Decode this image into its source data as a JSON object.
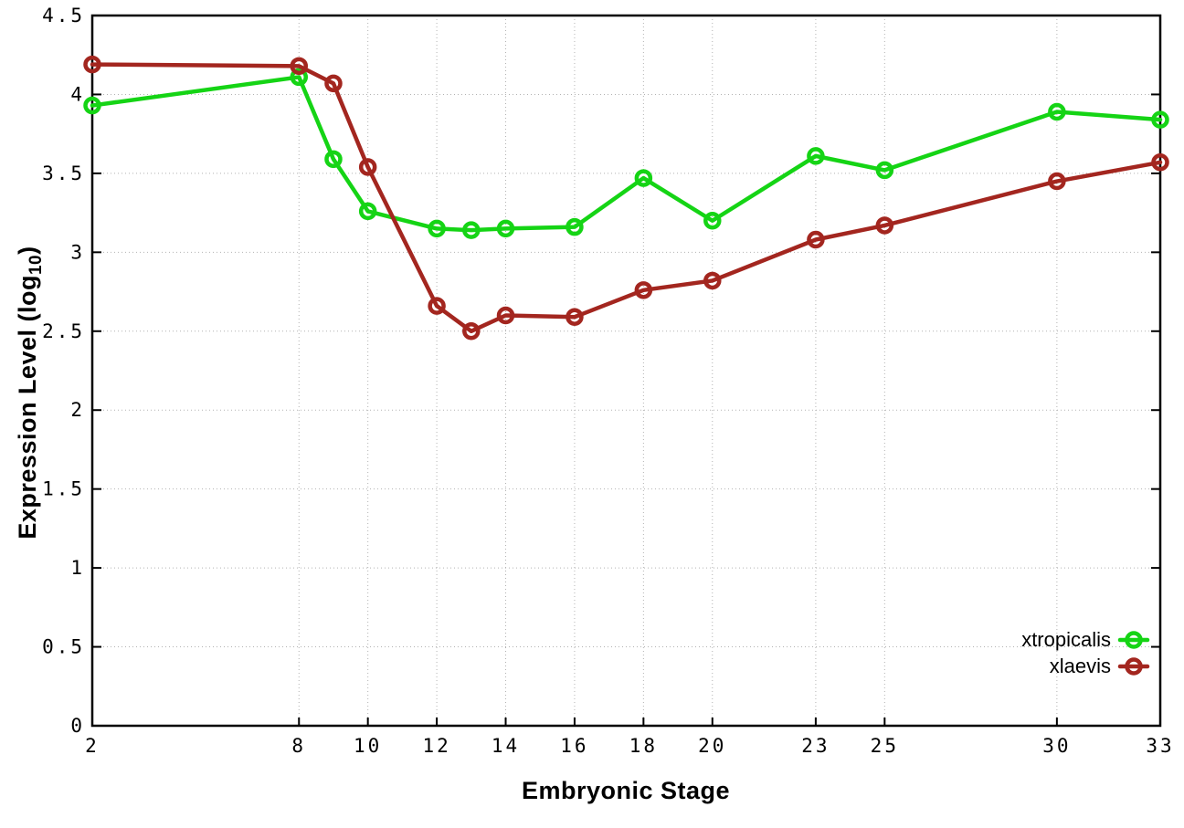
{
  "chart_data": {
    "type": "line",
    "title": "",
    "xlabel": "Embryonic Stage",
    "ylabel": "Expression Level (log10)",
    "ylabel_parts": {
      "base": "Expression Level (log",
      "sub": "10",
      "close": ")"
    },
    "marker": "open-circle",
    "x": [
      2,
      8,
      9,
      10,
      12,
      13,
      14,
      16,
      18,
      20,
      23,
      25,
      30,
      33
    ],
    "series": [
      {
        "name": "xtropicalis",
        "color": "#15d415",
        "values": [
          3.93,
          4.11,
          3.59,
          3.26,
          3.15,
          3.14,
          3.15,
          3.16,
          3.47,
          3.2,
          3.61,
          3.52,
          3.89,
          3.84
        ]
      },
      {
        "name": "xlaevis",
        "color": "#a3261f",
        "values": [
          4.19,
          4.18,
          4.07,
          3.54,
          2.66,
          2.5,
          2.6,
          2.59,
          2.76,
          2.82,
          3.08,
          3.17,
          3.45,
          3.57
        ]
      }
    ],
    "xticks": [
      2,
      8,
      10,
      12,
      14,
      16,
      18,
      20,
      23,
      25,
      30,
      33
    ],
    "xtick_labels": [
      "2",
      "8",
      "10",
      "12",
      "14",
      "16",
      "18",
      "20",
      "23",
      "25",
      "30",
      "33"
    ],
    "yticks": [
      0,
      0.5,
      1,
      1.5,
      2,
      2.5,
      3,
      3.5,
      4,
      4.5
    ],
    "ytick_labels": [
      "0",
      "0.5",
      "1",
      "1.5",
      "2",
      "2.5",
      "3",
      "3.5",
      "4",
      "4.5"
    ],
    "xlim": [
      2,
      33
    ],
    "ylim": [
      0,
      4.5
    ],
    "grid": true,
    "legend": {
      "position": "inside-bottom-right",
      "entries": [
        "xtropicalis",
        "xlaevis"
      ]
    },
    "colors": {
      "axis": "#000000",
      "grid": "#b2b2b2",
      "background": "#ffffff",
      "text": "#000000"
    }
  }
}
